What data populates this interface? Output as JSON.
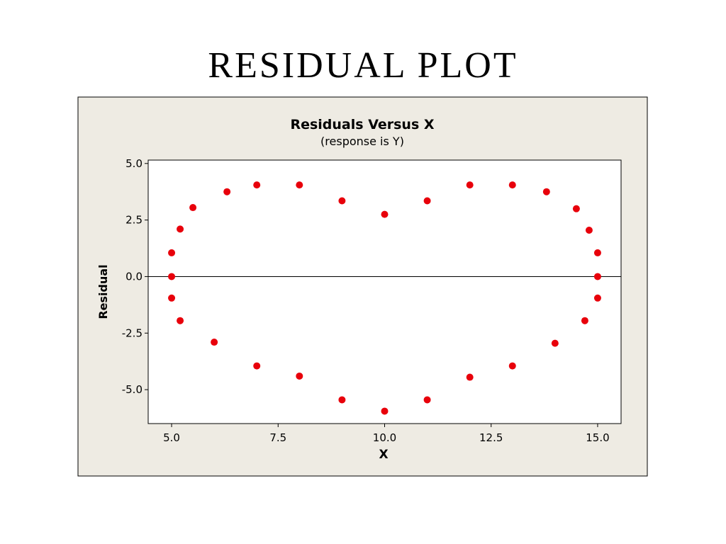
{
  "slide": {
    "title": "RESIDUAL PLOT"
  },
  "colors": {
    "panel_background": "#eeebe3",
    "plot_background": "#ffffff",
    "point": "#e8000b",
    "axis": "#000000"
  },
  "chart_data": {
    "type": "scatter",
    "title": "Residuals Versus X",
    "subtitle": "(response is Y)",
    "xlabel": "X",
    "ylabel": "Residual",
    "xlim": [
      4.45,
      15.55
    ],
    "ylim": [
      -6.5,
      5.15
    ],
    "xticks": [
      5.0,
      7.5,
      10.0,
      12.5,
      15.0
    ],
    "xtick_labels": [
      "5.0",
      "7.5",
      "10.0",
      "12.5",
      "15.0"
    ],
    "yticks": [
      5.0,
      2.5,
      0.0,
      -2.5,
      -5.0
    ],
    "ytick_labels": [
      "5.0",
      "2.5",
      "0.0",
      "-2.5",
      "-5.0"
    ],
    "reference_line_y": 0,
    "grid": false,
    "x": [
      5.0,
      5.0,
      5.2,
      5.5,
      6.3,
      7.0,
      8.0,
      9.0,
      10.0,
      11.0,
      12.0,
      13.0,
      13.8,
      14.5,
      14.8,
      15.0,
      15.0,
      15.0,
      14.7,
      14.0,
      13.0,
      12.0,
      11.0,
      10.0,
      9.0,
      8.0,
      7.0,
      6.0,
      5.2,
      5.0
    ],
    "y": [
      0.0,
      1.05,
      2.1,
      3.05,
      3.75,
      4.05,
      4.05,
      3.35,
      2.75,
      3.35,
      4.05,
      4.05,
      3.75,
      3.0,
      2.05,
      1.05,
      0.0,
      -0.95,
      -1.95,
      -2.95,
      -3.95,
      -4.45,
      -5.45,
      -5.95,
      -5.45,
      -4.4,
      -3.95,
      -2.9,
      -1.95,
      -0.95
    ]
  }
}
